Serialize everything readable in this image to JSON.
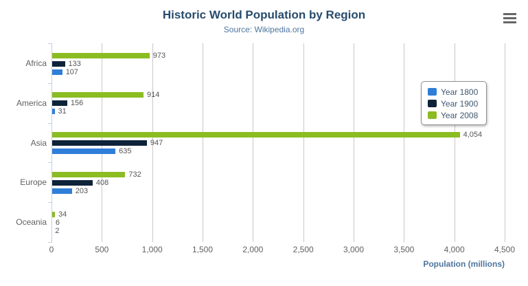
{
  "chart_data": {
    "type": "bar",
    "orientation": "horizontal",
    "title": "Historic World Population by Region",
    "subtitle": "Source: Wikipedia.org",
    "categories": [
      "Africa",
      "America",
      "Asia",
      "Europe",
      "Oceania"
    ],
    "series": [
      {
        "name": "Year 1800",
        "color": "#2f7ed8",
        "values": [
          107,
          31,
          635,
          203,
          2
        ],
        "labels": [
          "107",
          "31",
          "635",
          "203",
          "2"
        ]
      },
      {
        "name": "Year 1900",
        "color": "#0d233a",
        "values": [
          133,
          156,
          947,
          408,
          6
        ],
        "labels": [
          "133",
          "156",
          "947",
          "408",
          "6"
        ]
      },
      {
        "name": "Year 2008",
        "color": "#8bbc21",
        "values": [
          973,
          914,
          4054,
          732,
          34
        ],
        "labels": [
          "973",
          "914",
          "4,054",
          "732",
          "34"
        ]
      }
    ],
    "series_display_order_top_to_bottom": [
      "Year 2008",
      "Year 1900",
      "Year 1800"
    ],
    "xlabel": "Population (millions)",
    "xlim": [
      0,
      4500
    ],
    "x_tick_values": [
      0,
      500,
      1000,
      1500,
      2000,
      2500,
      3000,
      3500,
      4000,
      4500
    ],
    "x_tick_labels": [
      "0",
      "500",
      "1,000",
      "1,500",
      "2,000",
      "2,500",
      "3,000",
      "3,500",
      "4,000",
      "4,500"
    ],
    "grid": true,
    "legend_position": "inside-top-right",
    "data_labels": true
  },
  "icons": {
    "export_menu": "hamburger-icon"
  },
  "colors": {
    "background": "#ffffff",
    "title": "#274b6d",
    "subtitle": "#4d759e",
    "axis_label": "#606060",
    "category_label": "#606060",
    "data_label": "#555555",
    "grid_line": "#c8c8c8",
    "axis_line": "#c0d0e0",
    "axis_title": "#4d759e",
    "legend_text": "#3e576f",
    "legend_border": "#909090",
    "menu_icon": "#666666"
  }
}
